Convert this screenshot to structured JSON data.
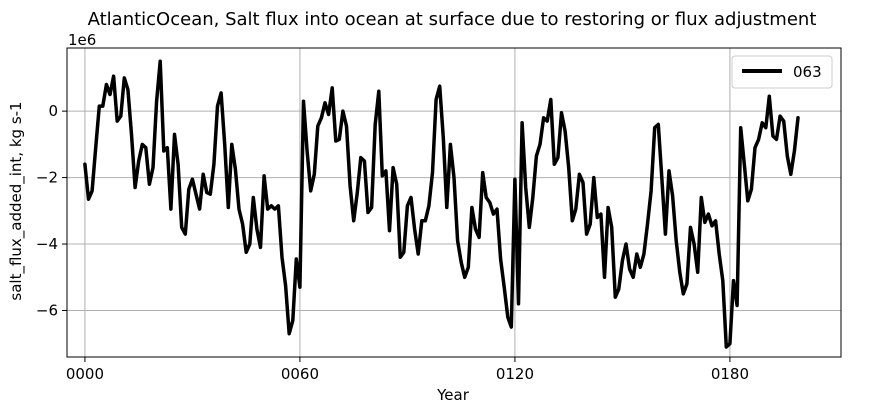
{
  "chart_data": {
    "type": "line",
    "title": "AtlanticOcean, Salt flux into ocean at surface due to restoring or flux adjustment",
    "xlabel": "Year",
    "ylabel": "salt_flux_added_int, kg s-1",
    "y_offset_label": "1e6",
    "xlim": [
      -5,
      211
    ],
    "ylim": [
      -7.4,
      1.9
    ],
    "x_ticks": [
      0,
      60,
      120,
      180
    ],
    "x_tick_labels": [
      "0000",
      "0060",
      "0120",
      "0180"
    ],
    "y_ticks": [
      -6,
      -4,
      -2,
      0
    ],
    "y_tick_labels": [
      "−6",
      "−4",
      "−2",
      "0"
    ],
    "grid": true,
    "legend_position": "top-right",
    "series": [
      {
        "name": "063",
        "color": "#000000",
        "x": [
          0,
          1,
          2,
          3,
          4,
          5,
          6,
          7,
          8,
          9,
          10,
          11,
          12,
          13,
          14,
          15,
          16,
          17,
          18,
          19,
          20,
          21,
          22,
          23,
          24,
          25,
          26,
          27,
          28,
          29,
          30,
          31,
          32,
          33,
          34,
          35,
          36,
          37,
          38,
          39,
          40,
          41,
          42,
          43,
          44,
          45,
          46,
          47,
          48,
          49,
          50,
          51,
          52,
          53,
          54,
          55,
          56,
          57,
          58,
          59,
          60,
          61,
          62,
          63,
          64,
          65,
          66,
          67,
          68,
          69,
          70,
          71,
          72,
          73,
          74,
          75,
          76,
          77,
          78,
          79,
          80,
          81,
          82,
          83,
          84,
          85,
          86,
          87,
          88,
          89,
          90,
          91,
          92,
          93,
          94,
          95,
          96,
          97,
          98,
          99,
          100,
          101,
          102,
          103,
          104,
          105,
          106,
          107,
          108,
          109,
          110,
          111,
          112,
          113,
          114,
          115,
          116,
          117,
          118,
          119,
          120,
          121,
          122,
          123,
          124,
          125,
          126,
          127,
          128,
          129,
          130,
          131,
          132,
          133,
          134,
          135,
          136,
          137,
          138,
          139,
          140,
          141,
          142,
          143,
          144,
          145,
          146,
          147,
          148,
          149,
          150,
          151,
          152,
          153,
          154,
          155,
          156,
          157,
          158,
          159,
          160,
          161,
          162,
          163,
          164,
          165,
          166,
          167,
          168,
          169,
          170,
          171,
          172,
          173,
          174,
          175,
          176,
          177,
          178,
          179,
          180,
          181,
          182,
          183,
          184,
          185,
          186,
          187,
          188,
          189,
          190,
          191,
          192,
          193,
          194,
          195,
          196,
          197,
          198,
          199
        ],
        "y": [
          -1.6,
          -2.65,
          -2.4,
          -1.1,
          0.15,
          0.15,
          0.8,
          0.5,
          1.05,
          -0.3,
          -0.15,
          1.0,
          0.65,
          -0.7,
          -2.3,
          -1.5,
          -1.0,
          -1.1,
          -2.2,
          -1.7,
          0.3,
          1.5,
          -1.2,
          -1.1,
          -2.95,
          -0.7,
          -1.6,
          -3.5,
          -3.7,
          -2.35,
          -2.05,
          -2.5,
          -2.95,
          -1.9,
          -2.45,
          -2.5,
          -1.6,
          0.15,
          0.55,
          -1.0,
          -2.9,
          -1.0,
          -1.75,
          -2.95,
          -3.4,
          -4.25,
          -4.0,
          -2.6,
          -3.55,
          -4.1,
          -1.95,
          -2.95,
          -2.85,
          -2.95,
          -2.85,
          -4.4,
          -5.25,
          -6.7,
          -6.3,
          -4.45,
          -5.3,
          0.3,
          -1.2,
          -2.4,
          -1.9,
          -0.45,
          -0.2,
          0.25,
          -0.1,
          0.7,
          -0.9,
          -0.85,
          0.0,
          -0.45,
          -2.25,
          -3.3,
          -2.45,
          -1.4,
          -1.5,
          -3.05,
          -2.9,
          -0.4,
          0.6,
          -1.95,
          -1.8,
          -3.6,
          -1.7,
          -2.2,
          -4.4,
          -4.25,
          -2.85,
          -2.6,
          -3.55,
          -4.3,
          -3.3,
          -3.3,
          -2.85,
          -1.85,
          0.35,
          0.75,
          -0.8,
          -2.9,
          -1.0,
          -2.0,
          -3.9,
          -4.55,
          -5.0,
          -4.7,
          -2.9,
          -3.55,
          -3.8,
          -1.85,
          -2.6,
          -2.75,
          -3.1,
          -2.95,
          -4.45,
          -5.3,
          -6.2,
          -6.5,
          -2.05,
          -5.8,
          -0.35,
          -2.3,
          -3.5,
          -2.6,
          -1.35,
          -1.0,
          -0.2,
          -0.3,
          0.35,
          -1.6,
          -1.4,
          -0.05,
          -0.6,
          -1.7,
          -3.3,
          -2.95,
          -1.9,
          -2.15,
          -3.7,
          -3.4,
          -2.0,
          -3.2,
          -3.1,
          -5.0,
          -2.9,
          -3.5,
          -5.6,
          -5.35,
          -4.5,
          -4.0,
          -4.75,
          -5.0,
          -4.3,
          -4.7,
          -4.3,
          -3.4,
          -2.4,
          -0.5,
          -0.4,
          -2.0,
          -3.7,
          -1.8,
          -2.55,
          -3.9,
          -4.85,
          -5.5,
          -5.2,
          -3.5,
          -4.0,
          -4.85,
          -2.6,
          -3.35,
          -3.1,
          -3.45,
          -3.3,
          -4.3,
          -5.1,
          -7.1,
          -7.0,
          -5.1,
          -5.85,
          -0.5,
          -1.6,
          -2.7,
          -2.35,
          -1.1,
          -0.85,
          -0.35,
          -0.5,
          0.45,
          -0.75,
          -0.85,
          -0.15,
          -0.3,
          -1.35,
          -1.9,
          -1.2,
          -0.2
        ]
      }
    ]
  }
}
